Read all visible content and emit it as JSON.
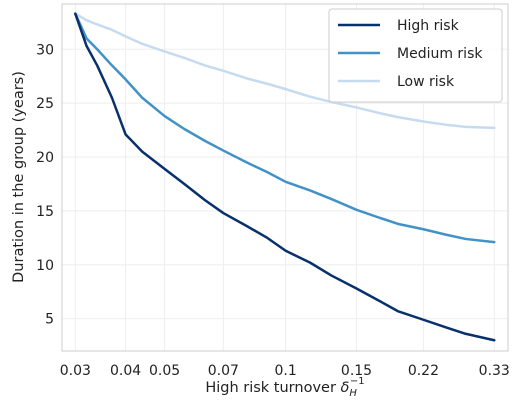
{
  "chart_data": {
    "type": "line",
    "xlabel": "High risk turnover",
    "xlabel_symbol": "δ",
    "xlabel_sub": "H",
    "xlabel_sup": "−1",
    "ylabel": "Duration in the group (years)",
    "x_scale": "log",
    "x": [
      0.03,
      0.032,
      0.034,
      0.037,
      0.04,
      0.044,
      0.05,
      0.056,
      0.063,
      0.07,
      0.08,
      0.09,
      0.1,
      0.115,
      0.13,
      0.15,
      0.17,
      0.19,
      0.22,
      0.25,
      0.28,
      0.33
    ],
    "xlim": [
      0.0278,
      0.357
    ],
    "ylim": [
      2.0,
      34.2
    ],
    "x_ticks": [
      0.03,
      0.04,
      0.05,
      0.07,
      0.1,
      0.15,
      0.22,
      0.33
    ],
    "x_tick_labels": [
      "0.03",
      "0.04",
      "0.05",
      "0.07",
      "0.1",
      "0.15",
      "0.22",
      "0.33"
    ],
    "y_ticks": [
      5,
      10,
      15,
      20,
      25,
      30
    ],
    "y_tick_labels": [
      "5",
      "10",
      "15",
      "20",
      "25",
      "30"
    ],
    "grid": true,
    "legend_position": "top-right",
    "series": [
      {
        "name": "High risk",
        "color": "#08306b",
        "values": [
          33.3,
          30.3,
          28.5,
          25.5,
          22.1,
          20.5,
          18.9,
          17.5,
          16.0,
          14.8,
          13.6,
          12.5,
          11.3,
          10.2,
          9.0,
          7.8,
          6.7,
          5.7,
          4.9,
          4.2,
          3.6,
          3.0
        ]
      },
      {
        "name": "Medium risk",
        "color": "#4292c6",
        "values": [
          33.3,
          31.0,
          30.0,
          28.5,
          27.2,
          25.5,
          23.8,
          22.6,
          21.5,
          20.6,
          19.5,
          18.6,
          17.7,
          16.9,
          16.1,
          15.1,
          14.4,
          13.8,
          13.3,
          12.8,
          12.4,
          12.1
        ]
      },
      {
        "name": "Low risk",
        "color": "#c6dbef",
        "values": [
          33.3,
          32.7,
          32.3,
          31.8,
          31.2,
          30.5,
          29.8,
          29.2,
          28.5,
          28.0,
          27.3,
          26.8,
          26.3,
          25.6,
          25.1,
          24.6,
          24.1,
          23.7,
          23.3,
          23.0,
          22.8,
          22.7
        ]
      }
    ]
  }
}
